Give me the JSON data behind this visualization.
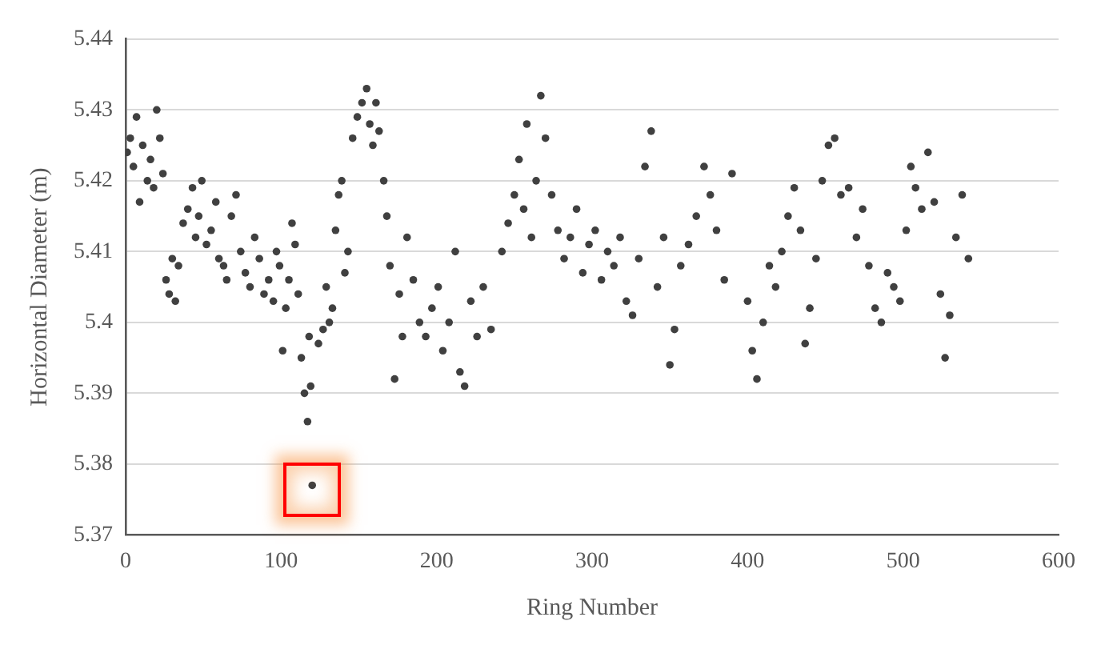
{
  "chart_data": {
    "type": "scatter",
    "xlabel": "Ring Number",
    "ylabel": "Horizontal Diameter (m)",
    "xlim": [
      0,
      600
    ],
    "xticks": [
      0,
      100,
      200,
      300,
      400,
      500,
      600
    ],
    "ylim": [
      5.37,
      5.44
    ],
    "yticks": [
      5.37,
      5.38,
      5.39,
      5.4,
      5.41,
      5.42,
      5.43,
      5.44
    ],
    "grid": "y",
    "legend": false,
    "marker": "circle",
    "series": [
      {
        "color": "#404040",
        "x": [
          1,
          3,
          5,
          7,
          9,
          11,
          14,
          16,
          18,
          20,
          22,
          24,
          26,
          28,
          30,
          32,
          34,
          37,
          40,
          43,
          45,
          47,
          49,
          52,
          55,
          58,
          60,
          63,
          65,
          68,
          71,
          74,
          77,
          80,
          83,
          86,
          89,
          92,
          95,
          97,
          99,
          101,
          103,
          105,
          107,
          109,
          111,
          113,
          115,
          117,
          118,
          119,
          120,
          124,
          127,
          129,
          131,
          133,
          135,
          137,
          139,
          141,
          143,
          146,
          149,
          152,
          155,
          157,
          159,
          161,
          163,
          166,
          168,
          170,
          173,
          176,
          178,
          181,
          185,
          189,
          193,
          197,
          201,
          204,
          208,
          212,
          215,
          218,
          222,
          226,
          230,
          235,
          242,
          246,
          250,
          253,
          256,
          258,
          261,
          264,
          267,
          270,
          274,
          278,
          282,
          286,
          290,
          294,
          298,
          302,
          306,
          310,
          314,
          318,
          322,
          326,
          330,
          334,
          338,
          342,
          346,
          350,
          353,
          357,
          362,
          367,
          372,
          376,
          380,
          385,
          390,
          400,
          403,
          406,
          410,
          414,
          418,
          422,
          426,
          430,
          434,
          437,
          440,
          444,
          448,
          452,
          456,
          460,
          465,
          470,
          474,
          478,
          482,
          486,
          490,
          494,
          498,
          502,
          505,
          508,
          512,
          516,
          520,
          524,
          527,
          530,
          534,
          538,
          542
        ],
        "values": [
          5.424,
          5.426,
          5.422,
          5.429,
          5.417,
          5.425,
          5.42,
          5.423,
          5.419,
          5.43,
          5.426,
          5.421,
          5.406,
          5.404,
          5.409,
          5.403,
          5.408,
          5.414,
          5.416,
          5.419,
          5.412,
          5.415,
          5.42,
          5.411,
          5.413,
          5.417,
          5.409,
          5.408,
          5.406,
          5.415,
          5.418,
          5.41,
          5.407,
          5.405,
          5.412,
          5.409,
          5.404,
          5.406,
          5.403,
          5.41,
          5.408,
          5.396,
          5.402,
          5.406,
          5.414,
          5.411,
          5.404,
          5.395,
          5.39,
          5.386,
          5.398,
          5.391,
          5.377,
          5.397,
          5.399,
          5.405,
          5.4,
          5.402,
          5.413,
          5.418,
          5.42,
          5.407,
          5.41,
          5.426,
          5.429,
          5.431,
          5.433,
          5.428,
          5.425,
          5.431,
          5.427,
          5.42,
          5.415,
          5.408,
          5.392,
          5.404,
          5.398,
          5.412,
          5.406,
          5.4,
          5.398,
          5.402,
          5.405,
          5.396,
          5.4,
          5.41,
          5.393,
          5.391,
          5.403,
          5.398,
          5.405,
          5.399,
          5.41,
          5.414,
          5.418,
          5.423,
          5.416,
          5.428,
          5.412,
          5.42,
          5.432,
          5.426,
          5.418,
          5.413,
          5.409,
          5.412,
          5.416,
          5.407,
          5.411,
          5.413,
          5.406,
          5.41,
          5.408,
          5.412,
          5.403,
          5.401,
          5.409,
          5.422,
          5.427,
          5.405,
          5.412,
          5.394,
          5.399,
          5.408,
          5.411,
          5.415,
          5.422,
          5.418,
          5.413,
          5.406,
          5.421,
          5.403,
          5.396,
          5.392,
          5.4,
          5.408,
          5.405,
          5.41,
          5.415,
          5.419,
          5.413,
          5.397,
          5.402,
          5.409,
          5.42,
          5.425,
          5.426,
          5.418,
          5.419,
          5.412,
          5.416,
          5.408,
          5.402,
          5.4,
          5.407,
          5.405,
          5.403,
          5.413,
          5.422,
          5.419,
          5.416,
          5.424,
          5.417,
          5.404,
          5.395,
          5.401,
          5.412,
          5.418,
          5.409
        ]
      }
    ]
  }
}
